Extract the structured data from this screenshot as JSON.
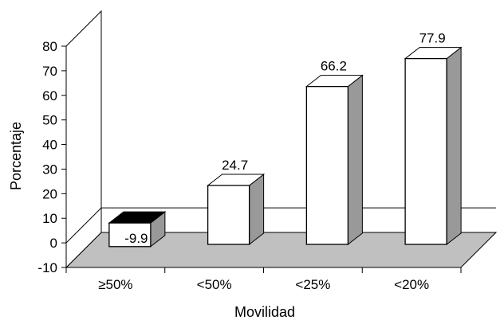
{
  "chart_data": {
    "type": "bar",
    "categories": [
      "≥50%",
      "<50%",
      "<25%",
      "<20%"
    ],
    "values": [
      -9.9,
      24.7,
      66.2,
      77.9
    ],
    "data_labels": [
      "-9.9",
      "24.7",
      "66.2",
      "77.9"
    ],
    "xlabel": "Movilidad",
    "ylabel": "Porcentaje",
    "ylim": [
      -10,
      80
    ],
    "yticks": [
      "-10",
      "0",
      "10",
      "20",
      "30",
      "40",
      "50",
      "60",
      "70",
      "80"
    ],
    "grid": false,
    "legend": "none",
    "style": "3d",
    "colors": {
      "front": "#ffffff",
      "side": "#999999",
      "top": "#ffffff",
      "negative_top": "#000000",
      "floor": "#c0c0c0",
      "wall": "#ffffff",
      "stroke": "#000000"
    }
  }
}
